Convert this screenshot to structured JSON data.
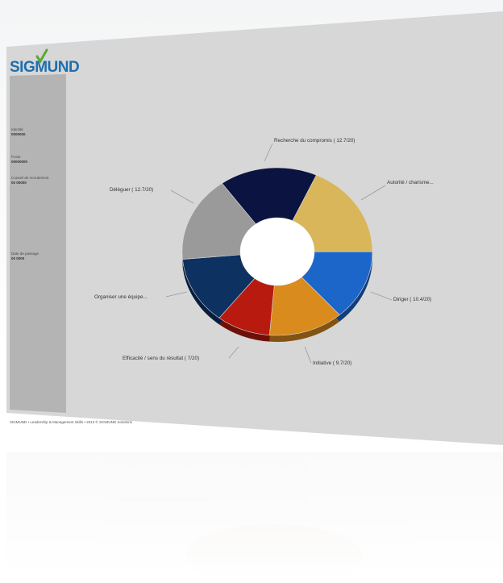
{
  "brand": {
    "logo_text": "SIGMUND"
  },
  "sidebar": {
    "fields": [
      {
        "label": "Identité",
        "value": "0000000"
      },
      {
        "label": "Poste",
        "value": "00000000"
      },
      {
        "label": "Conseil de recrutement",
        "value": "00 00000"
      },
      {
        "label": "Date de passage",
        "value": "00 0000"
      }
    ]
  },
  "footer": {
    "text": "SIGMUND • Leadership & Management Skills • 2013 © SIGMUND Solutions"
  },
  "colors": {
    "delegation": "#9a9a9a",
    "compromise": "#0b1440",
    "authority": "#d9b65a",
    "directing": "#1c66c9",
    "initiative": "#d98b1e",
    "efficiency": "#b81a0f",
    "team": "#0d3160"
  },
  "chart_data": {
    "type": "pie",
    "donut": true,
    "title": "",
    "slices": [
      {
        "label": "Recherche du compromis ( 12.7/20)",
        "value": 12.7,
        "color": "#0b1440"
      },
      {
        "label": "Autorité / charisme...",
        "value": 14.0,
        "color": "#d9b65a"
      },
      {
        "label": "Diriger ( 10.4/20)",
        "value": 10.4,
        "color": "#1c66c9"
      },
      {
        "label": "Initiative ( 9.7/20)",
        "value": 9.7,
        "color": "#d98b1e"
      },
      {
        "label": "Efficacité / sens du résultat ( 7/20)",
        "value": 7.0,
        "color": "#b81a0f"
      },
      {
        "label": "Organiser une équipe...",
        "value": 10.0,
        "color": "#0d3160"
      },
      {
        "label": "Déléguer ( 12.7/20)",
        "value": 12.7,
        "color": "#9a9a9a"
      }
    ]
  }
}
